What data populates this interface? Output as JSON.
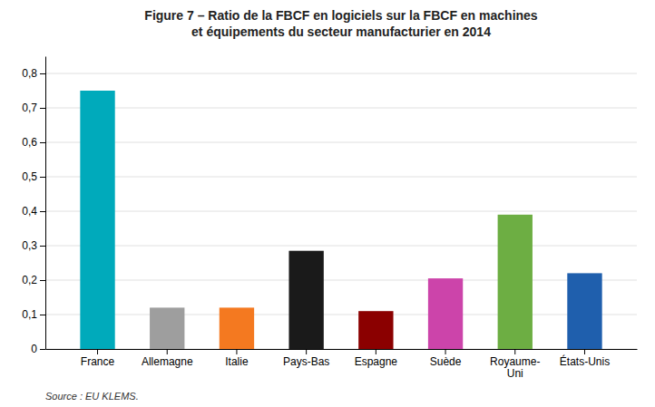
{
  "chart_data": {
    "type": "bar",
    "title": "Figure 7 – Ratio de la FBCF en logiciels sur la FBCF en machines\net équipements du secteur manufacturier en 2014",
    "categories": [
      "France",
      "Allemagne",
      "Italie",
      "Pays-Bas",
      "Espagne",
      "Suède",
      "Royaume-\nUni",
      "États-Unis"
    ],
    "values": [
      0.75,
      0.12,
      0.12,
      0.285,
      0.11,
      0.205,
      0.39,
      0.22
    ],
    "colors": [
      "#00AABB",
      "#9E9E9E",
      "#F47920",
      "#1A1A1A",
      "#8B0000",
      "#CC44AA",
      "#6DAE43",
      "#1F5FAD"
    ],
    "ylim": [
      0,
      0.85
    ],
    "yticks": [
      0,
      {
        "value": 0.1,
        "label": "0,1"
      },
      {
        "value": 0.2,
        "label": "0,2"
      },
      {
        "value": 0.3,
        "label": "0,3"
      },
      {
        "value": 0.4,
        "label": "0,4"
      },
      {
        "value": 0.5,
        "label": "0,5"
      },
      {
        "value": 0.6,
        "label": "0,6"
      },
      {
        "value": 0.7,
        "label": "0,7"
      },
      {
        "value": 0.8,
        "label": "0,8"
      }
    ],
    "grid": true,
    "source": "Source : EU KLEMS."
  }
}
